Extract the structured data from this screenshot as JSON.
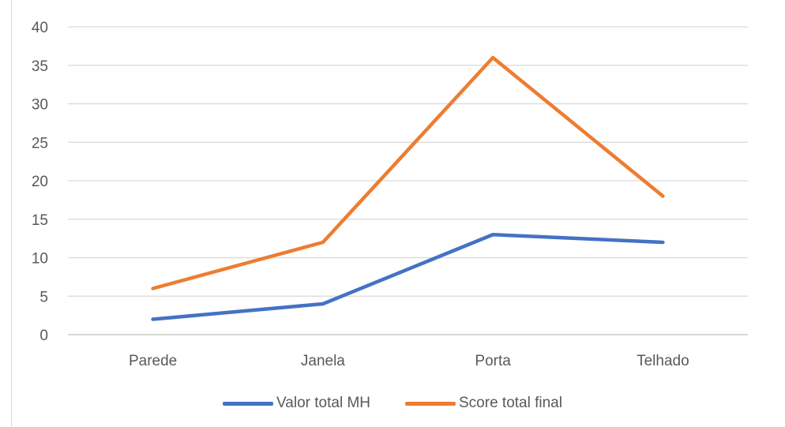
{
  "chart_data": {
    "type": "line",
    "categories": [
      "Parede",
      "Janela",
      "Porta",
      "Telhado"
    ],
    "series": [
      {
        "name": "Valor total MH",
        "values": [
          2,
          4,
          13,
          12
        ],
        "color": "#4472c4"
      },
      {
        "name": "Score total final",
        "values": [
          6,
          12,
          36,
          18
        ],
        "color": "#ed7d31"
      }
    ],
    "y_ticks": [
      "0",
      "5",
      "10",
      "15",
      "20",
      "25",
      "30",
      "35",
      "40"
    ],
    "ylim": [
      0,
      40
    ],
    "grid": true,
    "legend_position": "bottom",
    "title": "",
    "xlabel": "",
    "ylabel": ""
  }
}
